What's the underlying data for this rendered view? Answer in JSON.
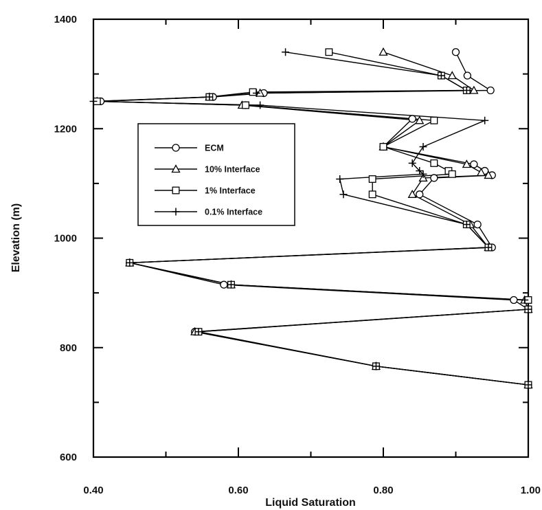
{
  "chart_data": {
    "type": "line",
    "title": "",
    "xlabel": "Liquid Saturation",
    "ylabel": "Elevation (m)",
    "xlim": [
      0.4,
      1.0
    ],
    "ylim": [
      600,
      1400
    ],
    "x_tick_labels": [
      "0.40",
      "0.60",
      "0.80",
      "1.00"
    ],
    "y_tick_labels": [
      "600",
      "800",
      "1000",
      "1200",
      "1400"
    ],
    "grid": false,
    "legend_position": "center-left inside plot",
    "series": [
      {
        "name": "ECM",
        "marker": "circle",
        "points": [
          [
            0.9,
            1340
          ],
          [
            0.916,
            1297
          ],
          [
            0.948,
            1270
          ],
          [
            0.635,
            1265
          ],
          [
            0.565,
            1258
          ],
          [
            0.41,
            1250
          ],
          [
            0.61,
            1243
          ],
          [
            0.84,
            1218
          ],
          [
            0.8,
            1167
          ],
          [
            0.925,
            1135
          ],
          [
            0.94,
            1123
          ],
          [
            0.95,
            1115
          ],
          [
            0.87,
            1110
          ],
          [
            0.85,
            1080
          ],
          [
            0.93,
            1025
          ],
          [
            0.95,
            983
          ],
          [
            0.45,
            955
          ],
          [
            0.58,
            915
          ],
          [
            0.98,
            887
          ],
          [
            1.0,
            870
          ],
          [
            0.54,
            829
          ],
          [
            0.79,
            766
          ],
          [
            1.0,
            732
          ]
        ]
      },
      {
        "name": "10% Interface",
        "marker": "triangle",
        "points": [
          [
            0.8,
            1340
          ],
          [
            0.895,
            1297
          ],
          [
            0.925,
            1270
          ],
          [
            0.63,
            1265
          ],
          [
            0.56,
            1258
          ],
          [
            0.405,
            1250
          ],
          [
            0.605,
            1243
          ],
          [
            0.85,
            1215
          ],
          [
            0.8,
            1167
          ],
          [
            0.915,
            1135
          ],
          [
            0.935,
            1120
          ],
          [
            0.945,
            1115
          ],
          [
            0.855,
            1110
          ],
          [
            0.84,
            1080
          ],
          [
            0.92,
            1025
          ],
          [
            0.945,
            983
          ],
          [
            0.45,
            955
          ],
          [
            0.59,
            915
          ],
          [
            0.995,
            887
          ],
          [
            1.0,
            870
          ],
          [
            0.54,
            829
          ],
          [
            0.79,
            766
          ],
          [
            1.0,
            732
          ]
        ]
      },
      {
        "name": "1% Interface",
        "marker": "square",
        "points": [
          [
            0.725,
            1340
          ],
          [
            0.88,
            1297
          ],
          [
            0.915,
            1270
          ],
          [
            0.62,
            1267
          ],
          [
            0.56,
            1258
          ],
          [
            0.405,
            1250
          ],
          [
            0.61,
            1243
          ],
          [
            0.87,
            1215
          ],
          [
            0.8,
            1167
          ],
          [
            0.87,
            1137
          ],
          [
            0.89,
            1123
          ],
          [
            0.895,
            1117
          ],
          [
            0.785,
            1108
          ],
          [
            0.785,
            1080
          ],
          [
            0.915,
            1025
          ],
          [
            0.945,
            983
          ],
          [
            0.45,
            955
          ],
          [
            0.59,
            915
          ],
          [
            1.0,
            887
          ],
          [
            1.0,
            870
          ],
          [
            0.545,
            829
          ],
          [
            0.79,
            766
          ],
          [
            1.0,
            732
          ]
        ]
      },
      {
        "name": "0.1% Interface",
        "marker": "plus",
        "points": [
          [
            0.665,
            1340
          ],
          [
            0.88,
            1297
          ],
          [
            0.915,
            1270
          ],
          [
            0.625,
            1265
          ],
          [
            0.56,
            1258
          ],
          [
            0.4,
            1250
          ],
          [
            0.63,
            1243
          ],
          [
            0.94,
            1215
          ],
          [
            0.855,
            1167
          ],
          [
            0.84,
            1137
          ],
          [
            0.85,
            1123
          ],
          [
            0.855,
            1117
          ],
          [
            0.74,
            1108
          ],
          [
            0.745,
            1080
          ],
          [
            0.915,
            1025
          ],
          [
            0.945,
            983
          ],
          [
            0.45,
            955
          ],
          [
            0.59,
            915
          ],
          [
            0.995,
            887
          ],
          [
            1.0,
            870
          ],
          [
            0.545,
            829
          ],
          [
            0.79,
            766
          ],
          [
            1.0,
            732
          ]
        ]
      }
    ]
  }
}
